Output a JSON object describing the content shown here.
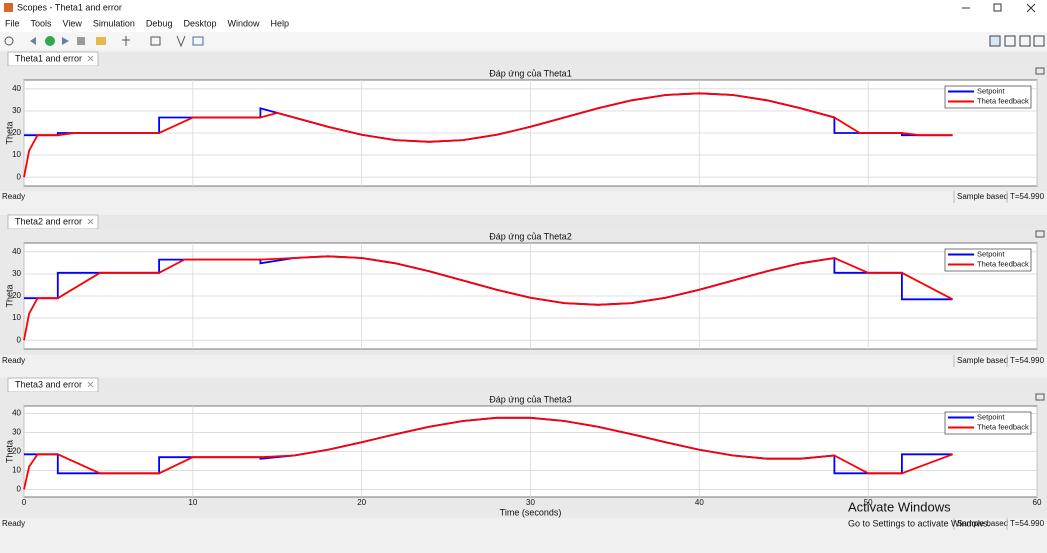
{
  "window": {
    "title": "Scopes - Theta1 and error",
    "menu": [
      "File",
      "Tools",
      "View",
      "Simulation",
      "Debug",
      "Desktop",
      "Window",
      "Help"
    ]
  },
  "panels": [
    {
      "tab": "Theta1 and error",
      "status": "Ready",
      "mode": "Sample based",
      "time": "T=54.990"
    },
    {
      "tab": "Theta2 and error",
      "status": "Ready",
      "mode": "Sample based",
      "time": "T=54.990"
    },
    {
      "tab": "Theta3 and error",
      "status": "Ready",
      "mode": "Sample based",
      "time": "T=54.990"
    }
  ],
  "watermark": {
    "title": "Activate Windows",
    "subtitle": "Go to Settings to activate Windows."
  },
  "chart_data": [
    {
      "type": "line",
      "title": "Đáp ứng của Theta1",
      "y_label": "Theta",
      "xlim": [
        0,
        60
      ],
      "ylim": [
        -4,
        44
      ],
      "xticks": [
        0,
        10,
        20,
        30,
        40,
        50,
        60
      ],
      "yticks": [
        0,
        10,
        20,
        30,
        40
      ],
      "xtick_labels": false,
      "grid": true,
      "legend": "top-right",
      "series": [
        {
          "name": "Setpoint",
          "color": "#0000ff",
          "x": [
            0,
            2,
            2,
            8,
            8,
            14,
            14,
            16,
            18,
            20,
            22,
            24,
            26,
            28,
            30,
            32,
            34,
            36,
            38,
            40,
            42,
            44,
            46,
            48,
            48,
            52,
            52,
            55
          ],
          "values": [
            19,
            19,
            20,
            20,
            27,
            27,
            31.2,
            27,
            22.8,
            19.2,
            16.8,
            16,
            16.8,
            19.2,
            22.8,
            27,
            31.2,
            34.8,
            37.2,
            38,
            37.2,
            34.8,
            31.2,
            27,
            20,
            20,
            19,
            19
          ]
        },
        {
          "name": "Theta feedback",
          "color": "#ff0000",
          "x": [
            0,
            0.3,
            0.8,
            2,
            3,
            8,
            10,
            14,
            15,
            16,
            18,
            20,
            22,
            24,
            26,
            28,
            30,
            32,
            34,
            36,
            38,
            40,
            42,
            44,
            46,
            48,
            49.5,
            52,
            53,
            55
          ],
          "values": [
            0,
            12,
            19,
            19,
            20,
            20,
            27,
            27,
            29.1,
            27,
            22.8,
            19.2,
            16.8,
            16,
            16.8,
            19.2,
            22.8,
            27,
            31.2,
            34.8,
            37.2,
            38,
            37.2,
            34.8,
            31.2,
            27,
            20,
            20,
            19,
            19
          ]
        }
      ]
    },
    {
      "type": "line",
      "title": "Đáp ứng của Theta2",
      "y_label": "Theta",
      "xlim": [
        0,
        60
      ],
      "ylim": [
        -4,
        44
      ],
      "xticks": [
        0,
        10,
        20,
        30,
        40,
        50,
        60
      ],
      "yticks": [
        0,
        10,
        20,
        30,
        40
      ],
      "xtick_labels": false,
      "grid": true,
      "legend": "top-right",
      "series": [
        {
          "name": "Setpoint",
          "color": "#0000ff",
          "x": [
            0,
            2,
            2,
            8,
            8,
            14,
            14,
            16,
            18,
            20,
            22,
            24,
            26,
            28,
            30,
            32,
            34,
            36,
            38,
            40,
            42,
            44,
            46,
            48,
            48,
            52,
            52,
            55
          ],
          "values": [
            19,
            19,
            30.5,
            30.5,
            36.5,
            36.5,
            34.8,
            37.2,
            38,
            37.2,
            34.8,
            31.2,
            27,
            22.8,
            19.2,
            16.8,
            16,
            16.8,
            19.2,
            22.8,
            27,
            31.2,
            34.8,
            37.2,
            30.5,
            30.5,
            18.5,
            18.5
          ]
        },
        {
          "name": "Theta feedback",
          "color": "#ff0000",
          "x": [
            0,
            0.3,
            0.8,
            2,
            4.5,
            8,
            9.5,
            14,
            16,
            18,
            20,
            22,
            24,
            26,
            28,
            30,
            32,
            34,
            36,
            38,
            40,
            42,
            44,
            46,
            48,
            50,
            52,
            55
          ],
          "values": [
            0,
            12,
            19,
            19,
            30.5,
            30.5,
            36.5,
            36.5,
            37.2,
            38,
            37.2,
            34.8,
            31.2,
            27,
            22.8,
            19.2,
            16.8,
            16,
            16.8,
            19.2,
            22.8,
            27,
            31.2,
            34.8,
            37.2,
            30.5,
            30.5,
            18.5
          ]
        }
      ]
    },
    {
      "type": "line",
      "title": "Đáp ứng của Theta3",
      "y_label": "Theta",
      "x_label": "Time (seconds)",
      "xlim": [
        0,
        60
      ],
      "ylim": [
        -4,
        44
      ],
      "xticks": [
        0,
        10,
        20,
        30,
        40,
        50,
        60
      ],
      "yticks": [
        0,
        10,
        20,
        30,
        40
      ],
      "xtick_labels": true,
      "grid": true,
      "legend": "top-right",
      "series": [
        {
          "name": "Setpoint",
          "color": "#0000ff",
          "x": [
            0,
            2,
            2,
            8,
            8,
            14,
            14,
            16,
            18,
            20,
            22,
            24,
            26,
            28,
            30,
            32,
            34,
            36,
            38,
            40,
            42,
            44,
            46,
            48,
            48,
            52,
            52,
            55
          ],
          "values": [
            18.5,
            18.5,
            8.5,
            8.5,
            17,
            17,
            16.2,
            17.9,
            20.9,
            24.9,
            29.1,
            33.1,
            36.1,
            37.8,
            37.8,
            36.1,
            33.1,
            29.1,
            24.9,
            20.9,
            17.9,
            16.2,
            16.2,
            17.9,
            8.5,
            8.5,
            18.5,
            18.5
          ]
        },
        {
          "name": "Theta feedback",
          "color": "#ff0000",
          "x": [
            0,
            0.3,
            0.8,
            2,
            4.5,
            8,
            10,
            14,
            16,
            18,
            20,
            22,
            24,
            26,
            28,
            30,
            32,
            34,
            36,
            38,
            40,
            42,
            44,
            46,
            48,
            50,
            52,
            55
          ],
          "values": [
            0,
            12,
            18.5,
            18.5,
            8.5,
            8.5,
            17,
            17,
            17.9,
            20.9,
            24.9,
            29.1,
            33.1,
            36.1,
            37.8,
            37.8,
            36.1,
            33.1,
            29.1,
            24.9,
            20.9,
            17.9,
            16.2,
            16.2,
            17.9,
            8.5,
            8.5,
            18.5
          ]
        }
      ]
    }
  ]
}
